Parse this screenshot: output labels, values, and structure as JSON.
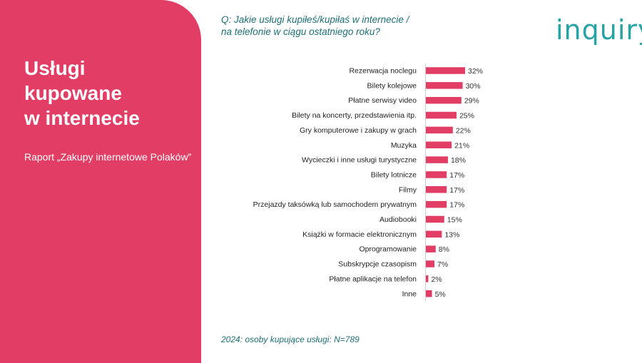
{
  "panel": {
    "title_lines": [
      "Usługi",
      "kupowane",
      "w internecie"
    ],
    "subtitle": "Raport „Zakupy internetowe Polaków”",
    "color": "#e23d64"
  },
  "question_lines": [
    "Q: Jakie usługi kupiłeś/kupiłaś w internecie /",
    "na telefonie w ciągu ostatniego roku?"
  ],
  "logo": "inquiry",
  "footnote": "2024: osoby kupujące usługi: N=789",
  "chart_data": {
    "type": "bar",
    "orientation": "horizontal",
    "bar_color": "#e23d64",
    "categories": [
      "Rezerwacja noclegu",
      "Bilety kolejowe",
      "Płatne serwisy video",
      "Bilety na koncerty, przedstawienia itp.",
      "Gry komputerowe i zakupy w grach",
      "Muzyka",
      "Wycieczki i inne usługi turystyczne",
      "Bilety lotnicze",
      "Filmy",
      "Przejazdy taksówką lub samochodem prywatnym",
      "Audiobooki",
      "Książki w formacie elektronicznym",
      "Oprogramowanie",
      "Subskrypcje czasopism",
      "Płatne aplikacje na telefon",
      "Inne"
    ],
    "values": [
      32,
      30,
      29,
      25,
      22,
      21,
      18,
      17,
      17,
      17,
      15,
      13,
      8,
      7,
      2,
      5
    ],
    "value_labels": [
      "32%",
      "30%",
      "29%",
      "25%",
      "22%",
      "21%",
      "18%",
      "17%",
      "17%",
      "17%",
      "15%",
      "13%",
      "8%",
      "7%",
      "2%",
      "5%"
    ],
    "xlim": [
      0,
      32
    ]
  }
}
